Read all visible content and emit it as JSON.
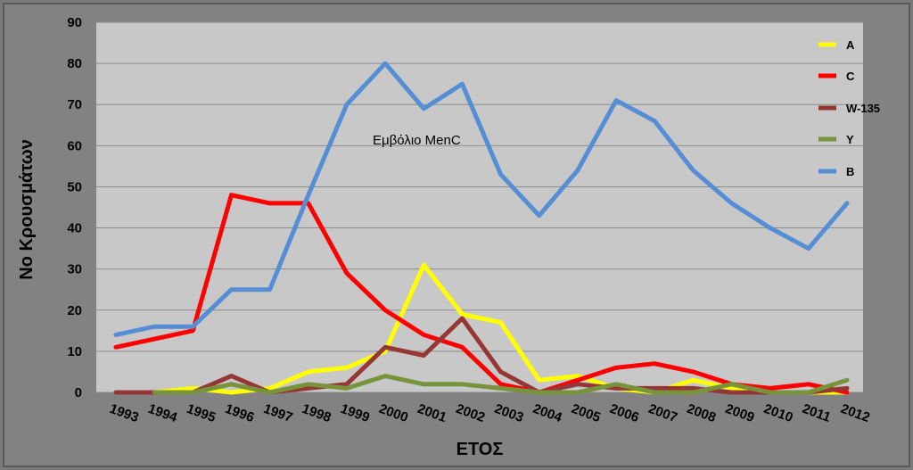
{
  "chart_data": {
    "type": "line",
    "title": "",
    "xlabel": "ΕΤΟΣ",
    "ylabel": "Νο Κρουσμάτων",
    "ylim": [
      0,
      90
    ],
    "yticks": [
      0,
      10,
      20,
      30,
      40,
      50,
      60,
      70,
      80,
      90
    ],
    "categories": [
      "1993",
      "1994",
      "1995",
      "1996",
      "1997",
      "1998",
      "1999",
      "2000",
      "2001",
      "2002",
      "2003",
      "2004",
      "2005",
      "2006",
      "2007",
      "2008",
      "2009",
      "2010",
      "2011",
      "2012"
    ],
    "grid": true,
    "legend_position": "right",
    "annotation": "Εμβόλιο MenC",
    "series": [
      {
        "name": "A",
        "color": "#ffff00",
        "values": [
          null,
          0,
          1,
          0,
          1,
          5,
          6,
          10,
          31,
          19,
          17,
          3,
          4,
          1,
          0,
          3,
          1,
          0,
          0,
          0
        ]
      },
      {
        "name": "C",
        "color": "#ff0000",
        "values": [
          11,
          13,
          15,
          48,
          46,
          46,
          29,
          20,
          14,
          11,
          2,
          0,
          3,
          6,
          7,
          5,
          2,
          1,
          2,
          0
        ]
      },
      {
        "name": "W-135",
        "color": "#953735",
        "values": [
          0,
          0,
          0,
          4,
          0,
          1,
          2,
          11,
          9,
          18,
          5,
          0,
          2,
          1,
          1,
          1,
          0,
          0,
          0,
          1
        ]
      },
      {
        "name": "Y",
        "color": "#77933c",
        "values": [
          null,
          0,
          0,
          2,
          0,
          2,
          1,
          4,
          2,
          2,
          1,
          0,
          0,
          2,
          0,
          0,
          2,
          0,
          0,
          3
        ]
      },
      {
        "name": "B",
        "color": "#558ed5",
        "values": [
          14,
          16,
          16,
          25,
          25,
          48,
          70,
          80,
          69,
          75,
          53,
          43,
          54,
          71,
          66,
          54,
          46,
          40,
          35,
          46
        ]
      }
    ]
  }
}
